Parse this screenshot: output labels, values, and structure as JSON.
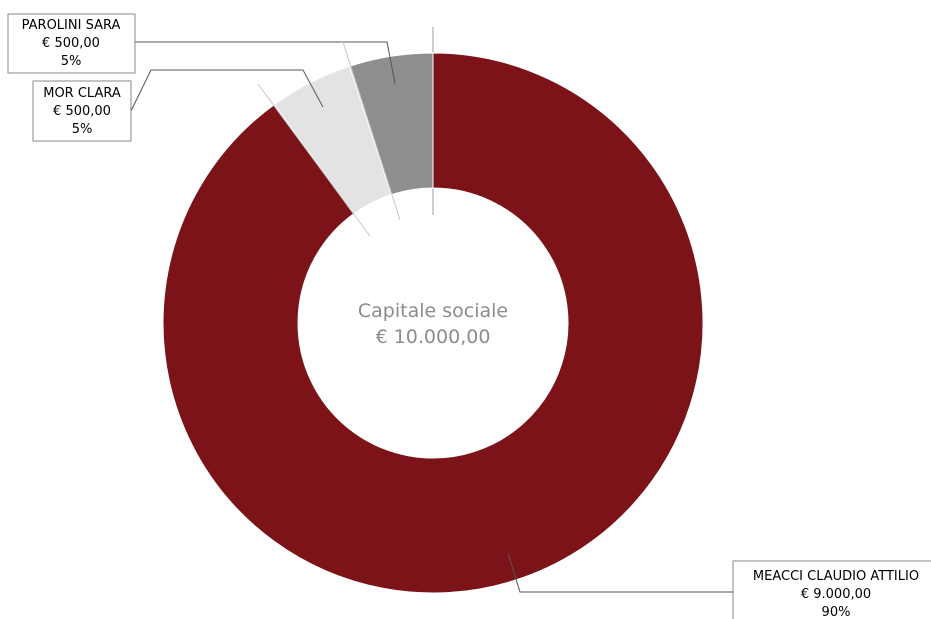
{
  "chart_data": {
    "type": "pie",
    "donut": true,
    "center_text": [
      "Capitale sociale",
      "€ 10.000,00"
    ],
    "slices": [
      {
        "name": "MEACCI CLAUDIO ATTILIO",
        "amount": "€ 9.000,00",
        "percent_label": "90%",
        "value": 90,
        "color": "#7b1318"
      },
      {
        "name": "MOR CLARA",
        "amount": "€ 500,00",
        "percent_label": "5%",
        "value": 5,
        "color": "#e3e3e3"
      },
      {
        "name": "PAROLINI SARA",
        "amount": "€ 500,00",
        "percent_label": "5%",
        "value": 5,
        "color": "#8e8e8e"
      }
    ]
  }
}
